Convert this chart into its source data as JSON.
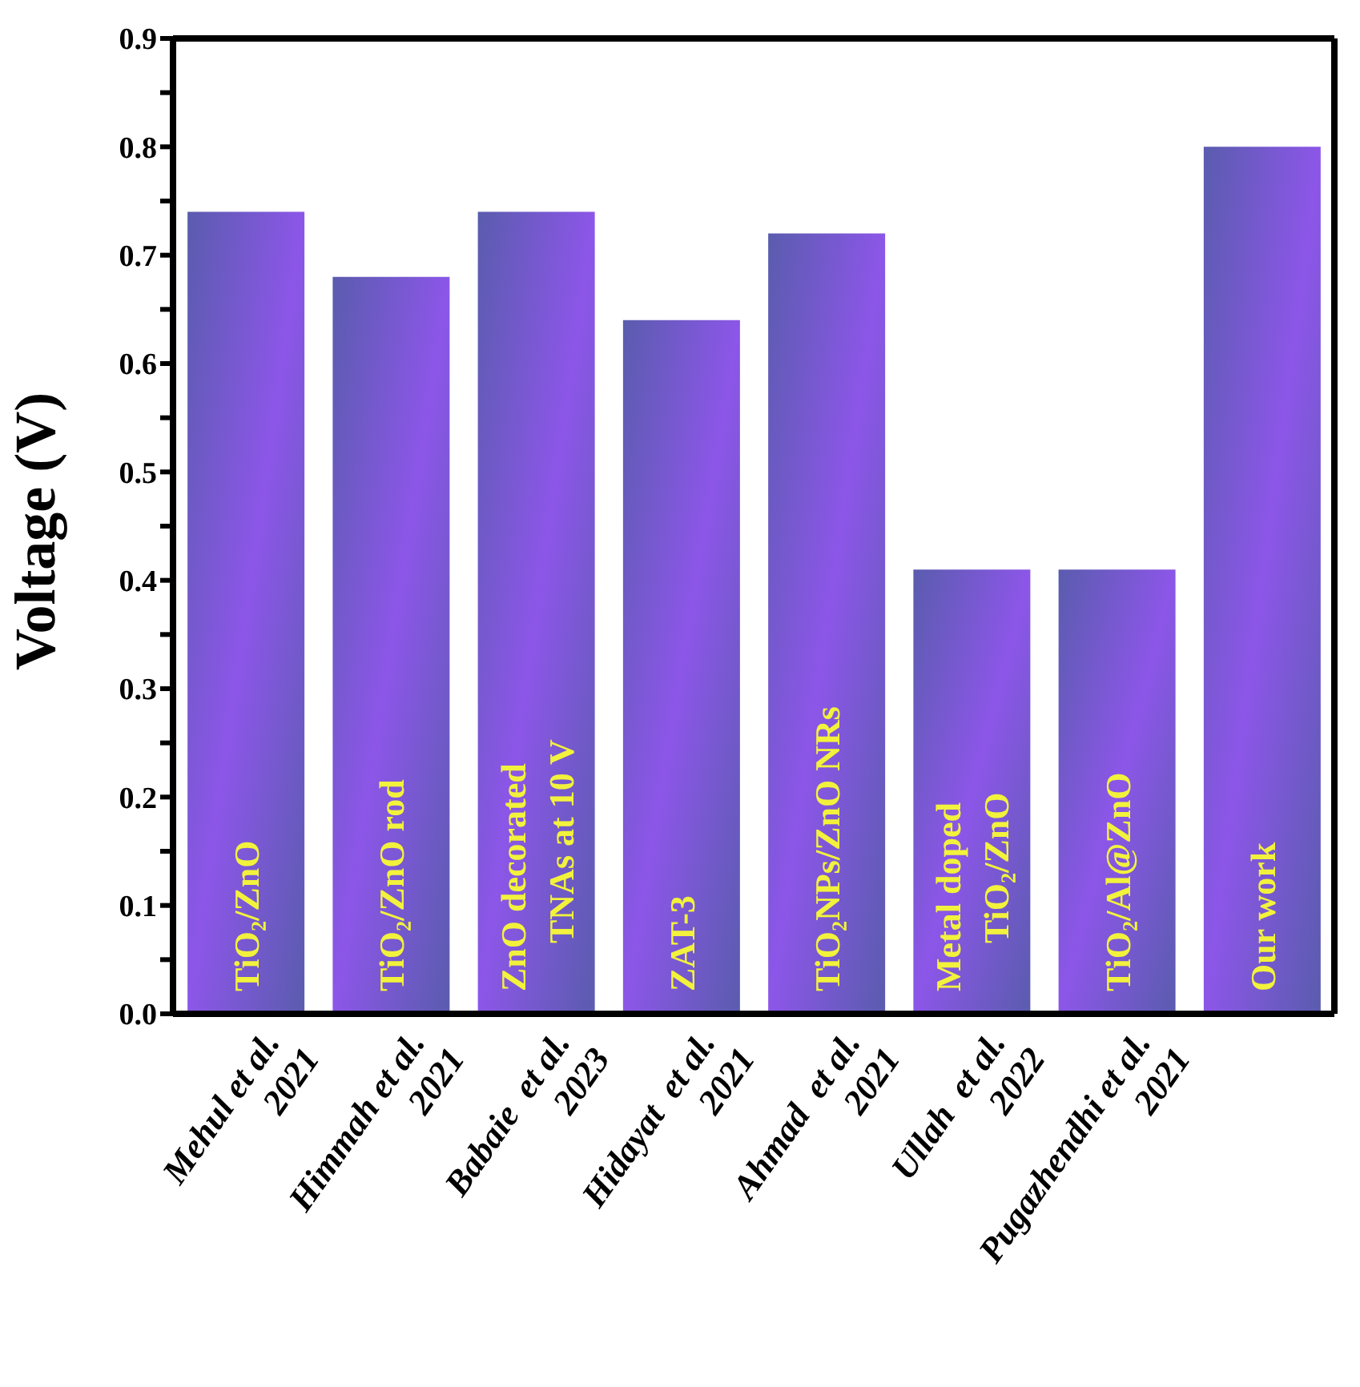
{
  "chart_data": {
    "type": "bar",
    "ylabel": "Voltage (V)",
    "categories": [
      "Mehul et al.\n2021",
      "Himmah et al.\n2021",
      "Babaie  et al.\n2023",
      "Hidayat  et al.\n2021",
      "Ahmad  et al.\n2021",
      "Ullah  et al.\n2022",
      "Pugazhendhi et al.\n2021",
      null
    ],
    "values": [
      0.74,
      0.68,
      0.74,
      0.64,
      0.72,
      0.41,
      0.41,
      0.8
    ],
    "color": "#8c56e8",
    "ylim": [
      0,
      0.9
    ],
    "yticks": [
      {
        "value": 0,
        "label": "0.0"
      },
      {
        "value": 0.05,
        "label": null
      },
      0.1,
      {
        "value": 0.15,
        "label": null
      },
      0.2,
      {
        "value": 0.25,
        "label": null
      },
      0.3,
      {
        "value": 0.35,
        "label": null
      },
      0.4,
      {
        "value": 0.45,
        "label": null
      },
      0.5,
      {
        "value": 0.55,
        "label": null
      },
      0.6,
      {
        "value": 0.65,
        "label": null
      },
      0.7,
      {
        "value": 0.75,
        "label": null
      },
      0.8,
      {
        "value": 0.85,
        "label": null
      },
      0.9
    ],
    "annotations": [
      "TiO₂/ZnO",
      "TiO₂/ZnO rod",
      "ZnO decorated\nTNAs at 10 V",
      "ZAT-3",
      "TiO₂NPs/ZnO NRs",
      "Metal doped\nTiO₂/ZnO",
      "TiO₂/Al@ZnO",
      "Our work"
    ],
    "grid": false,
    "legend": false
  }
}
